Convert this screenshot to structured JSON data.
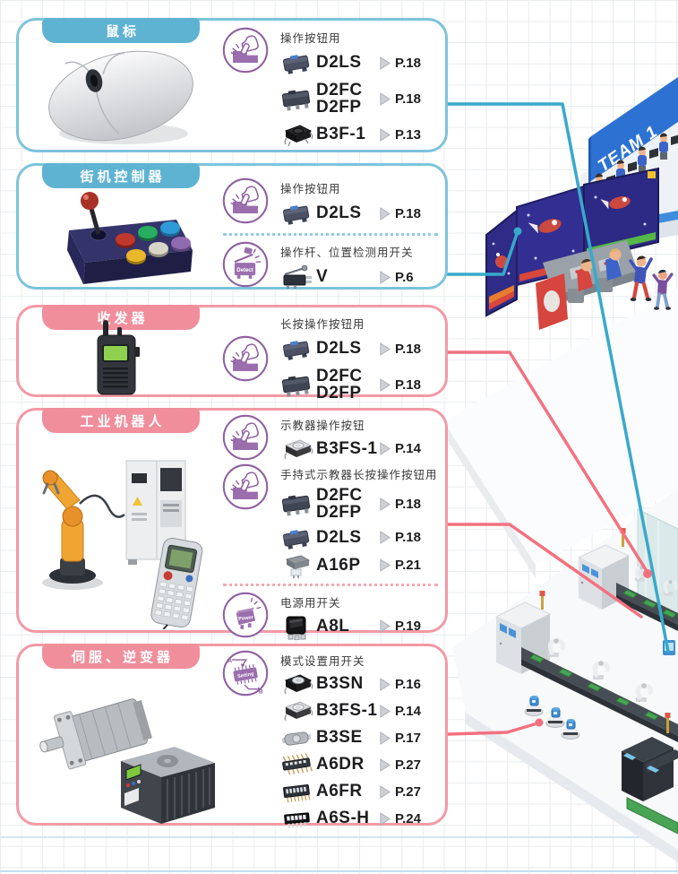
{
  "palette": {
    "box_blue_border": "#7cc3db",
    "box_pink_border": "#f29aa5",
    "header_blue": "#5fb3d2",
    "header_pink": "#f08e9b",
    "icon_purple": "#8e5fa0",
    "icon_purple_fill": "#9b6fae",
    "connector_blue": "#38a9cb",
    "connector_red": "#f3717f",
    "page_text": "#1d1d1f"
  },
  "illustration": {
    "team_banner": "TEAM 1"
  },
  "boxes": [
    {
      "id": "mouse",
      "title": "鼠标",
      "color": "blue",
      "sections": [
        {
          "type": "group",
          "icon": "press",
          "usage": "操作按钮用",
          "rows": [
            {
              "icon": "d2ls",
              "models": [
                "D2LS"
              ],
              "page": "P.18"
            },
            {
              "icon": "d2fc",
              "models": [
                "D2FC",
                "D2FP"
              ],
              "page": "P.18"
            },
            {
              "icon": "tact-black",
              "models": [
                "B3F-1"
              ],
              "page": "P.13"
            }
          ]
        }
      ]
    },
    {
      "id": "arcade-controller",
      "title": "街机控制器",
      "color": "blue",
      "sections": [
        {
          "type": "group",
          "icon": "press",
          "usage": "操作按钮用",
          "rows": [
            {
              "icon": "d2ls",
              "models": [
                "D2LS"
              ],
              "page": "P.18"
            }
          ]
        },
        {
          "type": "divider"
        },
        {
          "type": "group",
          "icon": "detect",
          "icon_label": "Detect",
          "usage": "操作杆、位置检测用开关",
          "rows": [
            {
              "icon": "lever",
              "models": [
                "V"
              ],
              "page": "P.6"
            }
          ]
        }
      ]
    },
    {
      "id": "transceiver",
      "title": "收发器",
      "color": "pink",
      "valign": "center",
      "sections": [
        {
          "type": "group",
          "icon": "press",
          "usage": "长按操作按钮用",
          "rows": [
            {
              "icon": "d2ls",
              "models": [
                "D2LS"
              ],
              "page": "P.18"
            },
            {
              "icon": "d2fc",
              "models": [
                "D2FC",
                "D2FP"
              ],
              "page": "P.18"
            }
          ]
        }
      ]
    },
    {
      "id": "industrial-robot",
      "title": "工业机器人",
      "color": "pink",
      "sections": [
        {
          "type": "group",
          "icon": "press",
          "usage": "示教器操作按钮",
          "rows": [
            {
              "icon": "tact-silver",
              "models": [
                "B3FS-1"
              ],
              "page": "P.14"
            }
          ]
        },
        {
          "type": "group",
          "icon": "press",
          "usage": "手持式示教器长按操作按钮用",
          "rows": [
            {
              "icon": "d2fc",
              "models": [
                "D2FC",
                "D2FP"
              ],
              "page": "P.18"
            },
            {
              "icon": "d2ls",
              "models": [
                "D2LS"
              ],
              "page": "P.18"
            },
            {
              "icon": "a16p",
              "models": [
                "A16P"
              ],
              "page": "P.21"
            }
          ]
        },
        {
          "type": "divider"
        },
        {
          "type": "group",
          "icon": "power",
          "icon_label": "Power",
          "usage": "电源用开关",
          "rows": [
            {
              "icon": "a8l",
              "models": [
                "A8L"
              ],
              "page": "P.19"
            }
          ]
        }
      ]
    },
    {
      "id": "servo-inverter",
      "title": "伺服、逆变器",
      "color": "pink",
      "sections": [
        {
          "type": "group",
          "icon": "setting",
          "icon_label": "Setting",
          "usage": "模式设置用开关",
          "rows": [
            {
              "icon": "b3sn",
              "models": [
                "B3SN"
              ],
              "page": "P.16"
            },
            {
              "icon": "tact-silver",
              "models": [
                "B3FS-1"
              ],
              "page": "P.14"
            },
            {
              "icon": "b3se",
              "models": [
                "B3SE"
              ],
              "page": "P.17"
            },
            {
              "icon": "a6dr",
              "models": [
                "A6DR"
              ],
              "page": "P.27"
            },
            {
              "icon": "a6fr",
              "models": [
                "A6FR"
              ],
              "page": "P.27"
            },
            {
              "icon": "a6s",
              "models": [
                "A6S-H"
              ],
              "page": "P.24"
            }
          ]
        }
      ]
    }
  ]
}
